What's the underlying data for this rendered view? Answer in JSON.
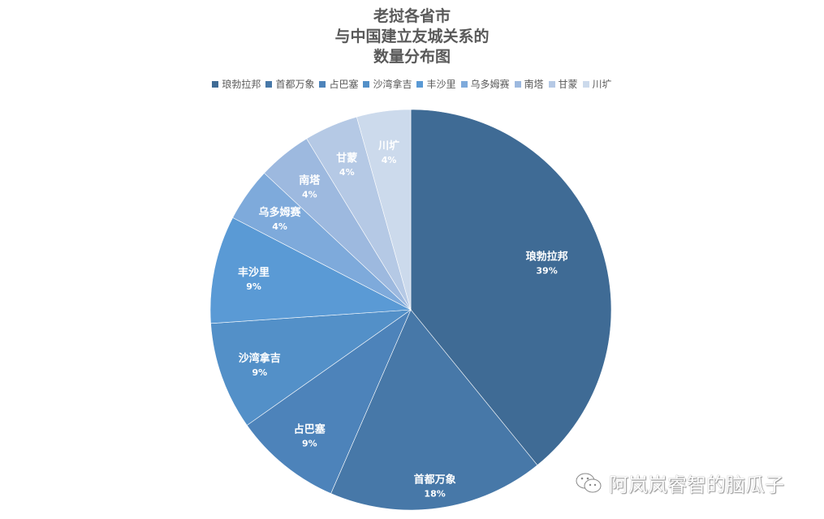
{
  "title_lines": [
    "老挝各省市",
    "与中国建立友城关系的",
    "数量分布图"
  ],
  "watermark": {
    "icon": "wechat-icon",
    "text": "阿岚岚睿智的脑瓜子"
  },
  "legend": [
    {
      "label": "琅勃拉邦",
      "color": "#3f6b95"
    },
    {
      "label": "首都万象",
      "color": "#4778a8"
    },
    {
      "label": "占巴塞",
      "color": "#4d83ba"
    },
    {
      "label": "沙湾拿吉",
      "color": "#5390c8"
    },
    {
      "label": "丰沙里",
      "color": "#5a9ad5"
    },
    {
      "label": "乌多姆赛",
      "color": "#7eaadb"
    },
    {
      "label": "南塔",
      "color": "#9db9df"
    },
    {
      "label": "甘蒙",
      "color": "#b5c9e5"
    },
    {
      "label": "川圹",
      "color": "#ccdaec"
    }
  ],
  "chart_data": {
    "type": "pie",
    "title": "老挝各省市与中国建立友城关系的数量分布图",
    "categories": [
      "琅勃拉邦",
      "首都万象",
      "占巴塞",
      "沙湾拿吉",
      "丰沙里",
      "乌多姆赛",
      "南塔",
      "甘蒙",
      "川圹"
    ],
    "values": [
      9,
      4,
      2,
      2,
      2,
      1,
      1,
      1,
      1
    ],
    "percent_labels": [
      "39%",
      "18%",
      "9%",
      "9%",
      "9%",
      "4%",
      "4%",
      "4%",
      "4%"
    ],
    "colors": [
      "#3f6b95",
      "#4778a8",
      "#4d83ba",
      "#5390c8",
      "#5a9ad5",
      "#7eaadb",
      "#9db9df",
      "#b5c9e5",
      "#ccdaec"
    ],
    "start_angle": "top, clockwise",
    "legend_position": "top",
    "center": [
      506,
      382
    ],
    "radius": 247
  }
}
